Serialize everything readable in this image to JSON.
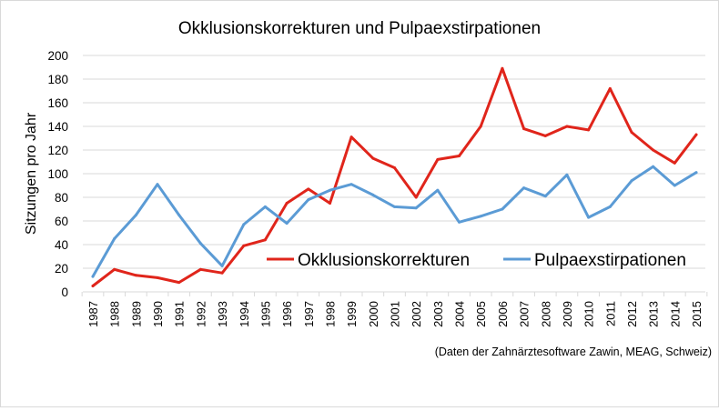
{
  "chart_data": {
    "type": "line",
    "title": "Okklusionskorrekturen und Pulpaexstirpationen",
    "ylabel": "Sitzungen pro Jahr",
    "xlabel": "",
    "ylim": [
      0,
      200
    ],
    "yticks": [
      0,
      20,
      40,
      60,
      80,
      100,
      120,
      140,
      160,
      180,
      200
    ],
    "grid": "horizontal",
    "legend_position": "center-right",
    "x": [
      "1987",
      "1988",
      "1989",
      "1990",
      "1991",
      "1992",
      "1993",
      "1994",
      "1995",
      "1996",
      "1997",
      "1998",
      "1999",
      "2000",
      "2001",
      "2002",
      "2003",
      "2004",
      "2005",
      "2006",
      "2007",
      "2008",
      "2009",
      "2010",
      "2011",
      "2012",
      "2013",
      "2014",
      "2015"
    ],
    "series": [
      {
        "name": "Okklusionskorrekturen",
        "color": "#e0251b",
        "values": [
          5,
          19,
          14,
          12,
          8,
          19,
          16,
          39,
          44,
          75,
          87,
          75,
          131,
          113,
          105,
          80,
          112,
          115,
          140,
          189,
          138,
          132,
          140,
          137,
          172,
          135,
          120,
          109,
          133
        ]
      },
      {
        "name": "Pulpaexstirpationen",
        "color": "#5b9bd5",
        "values": [
          13,
          45,
          65,
          91,
          65,
          41,
          22,
          57,
          72,
          58,
          78,
          86,
          91,
          82,
          72,
          71,
          86,
          59,
          64,
          70,
          88,
          81,
          99,
          63,
          72,
          94,
          106,
          90,
          101
        ]
      }
    ],
    "source_note": "(Daten der Zahnärztesoftware Zawin, MEAG, Schweiz)"
  }
}
